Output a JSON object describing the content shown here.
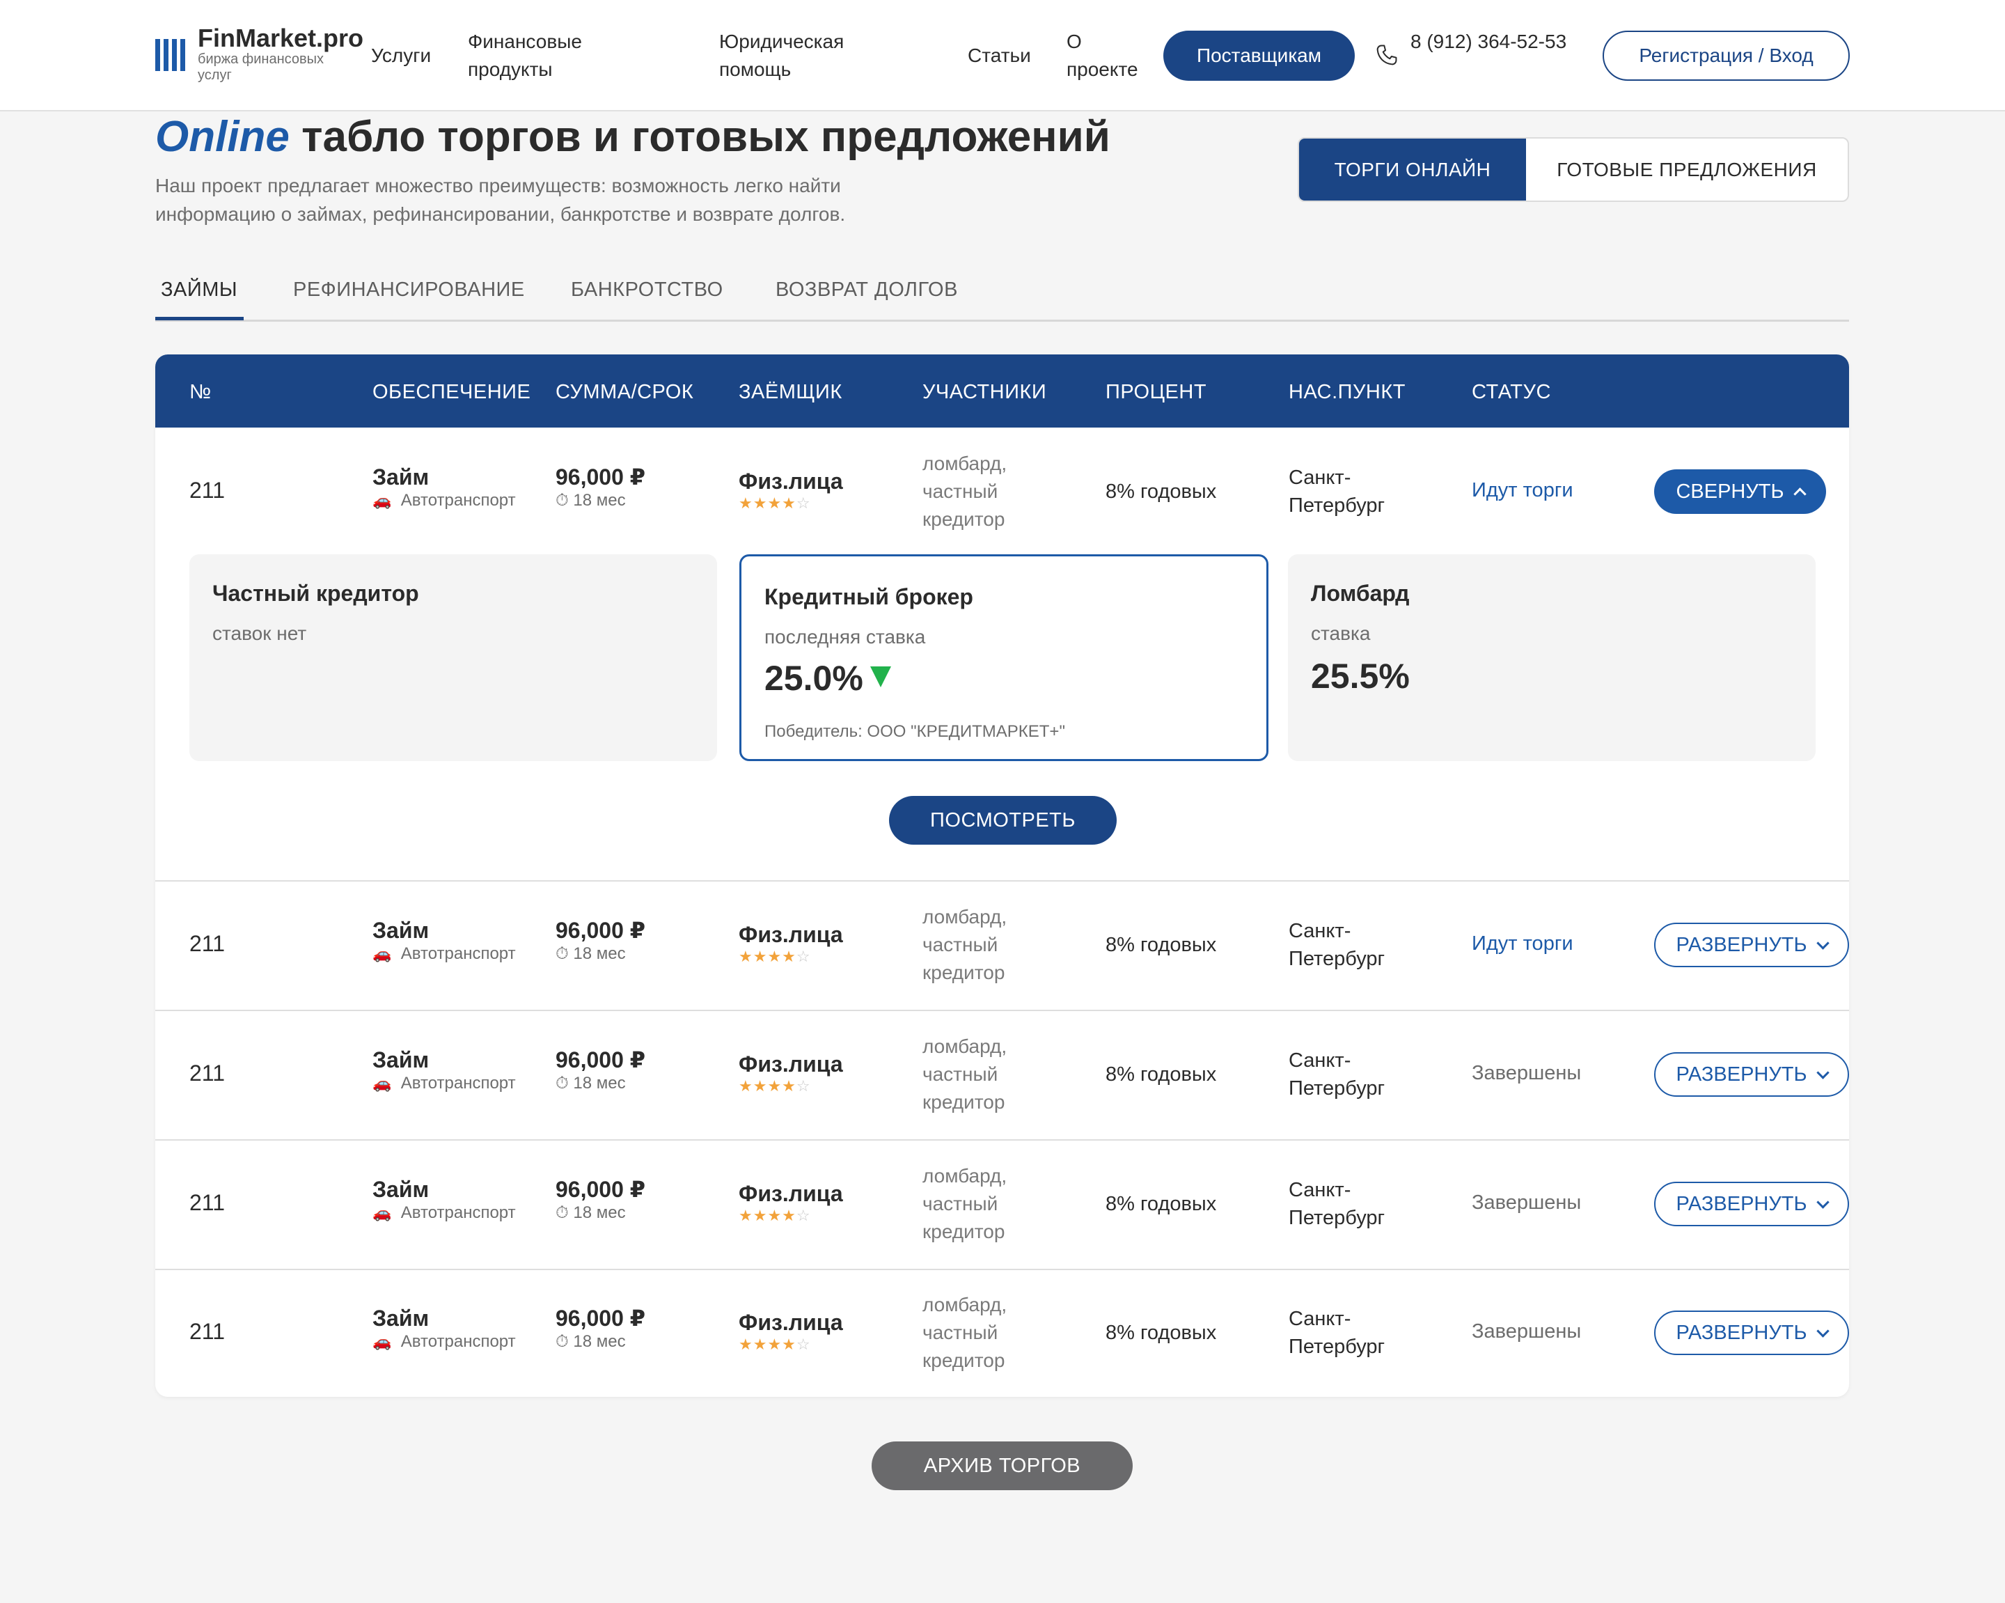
{
  "header": {
    "logo_name": "FinMarket.pro",
    "logo_sub": "биржа финансовых услуг",
    "nav": [
      "Услуги",
      "Финансовые продукты",
      "Юридическая помощь",
      "Статьи",
      "О проекте"
    ],
    "suppliers_label": "Поставщикам",
    "phone": "8 (912) 364-52-53",
    "login_label": "Регистрация / Вход"
  },
  "hero": {
    "title_accent": "Online",
    "title_rest": "табло торгов и готовых предложений",
    "description": "Наш проект предлагает множество преимуществ: возможность легко найти информацию о займах, рефинансировании, банкротстве и возврате долгов.",
    "switch_active": "ТОРГИ ОНЛАЙН",
    "switch_inactive": "ГОТОВЫЕ ПРЕДЛОЖЕНИЯ"
  },
  "tabs": [
    "ЗАЙМЫ",
    "РЕФИНАНСИРОВАНИЕ",
    "БАНКРОТСТВО",
    "ВОЗВРАТ ДОЛГОВ"
  ],
  "table": {
    "columns": [
      "№",
      "ОБЕСПЕЧЕНИЕ",
      "СУММА/СРОК",
      "ЗАЁМЩИК",
      "УЧАСТНИКИ",
      "ПРОЦЕНТ",
      "НАС.ПУНКТ",
      "СТАТУС"
    ],
    "rows": [
      {
        "num": "211",
        "type": "Займ",
        "collateral": "Автотранспорт",
        "amount": "96,000 ₽",
        "term": "18 мес",
        "borrower": "Физ.лица",
        "rating": 4,
        "participants": "ломбард, частный кредитор",
        "rate": "8% годовых",
        "city": "Санкт-Петербург",
        "status": "Идут торги",
        "action": "СВЕРНУТЬ"
      },
      {
        "num": "211",
        "type": "Займ",
        "collateral": "Автотранспорт",
        "amount": "96,000 ₽",
        "term": "18 мес",
        "borrower": "Физ.лица",
        "rating": 4,
        "participants": "ломбард, частный кредитор",
        "rate": "8% годовых",
        "city": "Санкт-Петербург",
        "status": "Идут торги",
        "action": "РАЗВЕРНУТЬ"
      },
      {
        "num": "211",
        "type": "Займ",
        "collateral": "Автотранспорт",
        "amount": "96,000 ₽",
        "term": "18 мес",
        "borrower": "Физ.лица",
        "rating": 4,
        "participants": "ломбард, частный кредитор",
        "rate": "8% годовых",
        "city": "Санкт-Петербург",
        "status": "Завершены",
        "action": "РАЗВЕРНУТЬ"
      },
      {
        "num": "211",
        "type": "Займ",
        "collateral": "Автотранспорт",
        "amount": "96,000 ₽",
        "term": "18 мес",
        "borrower": "Физ.лица",
        "rating": 4,
        "participants": "ломбард, частный кредитор",
        "rate": "8% годовых",
        "city": "Санкт-Петербург",
        "status": "Завершены",
        "action": "РАЗВЕРНУТЬ"
      },
      {
        "num": "211",
        "type": "Займ",
        "collateral": "Автотранспорт",
        "amount": "96,000 ₽",
        "term": "18 мес",
        "borrower": "Физ.лица",
        "rating": 4,
        "participants": "ломбард, частный кредитор",
        "rate": "8% годовых",
        "city": "Санкт-Петербург",
        "status": "Завершены",
        "action": "РАЗВЕРНУТЬ"
      }
    ],
    "rating_max": 5
  },
  "bids": [
    {
      "title": "Частный кредитор",
      "label": "ставок нет",
      "value": "",
      "winner": "",
      "highlight": false
    },
    {
      "title": "Кредитный брокер",
      "label": "последняя ставка",
      "value": "25.0%",
      "winner": "Победитель: ООО \"КРЕДИТМАРКЕТ+\"",
      "highlight": true
    },
    {
      "title": "Ломбард",
      "label": "ставка",
      "value": "25.5%",
      "winner": "",
      "highlight": false
    }
  ],
  "view_label": "ПОСМОТРЕТЬ",
  "archive_label": "АРХИВ ТОРГОВ",
  "colors": {
    "primary": "#1b4585",
    "accent": "#1d5aa8",
    "star": "#f2a23a",
    "down": "#22b24c"
  },
  "icons": {
    "car": "car-icon",
    "clock": "clock-icon",
    "phone": "phone-icon"
  }
}
